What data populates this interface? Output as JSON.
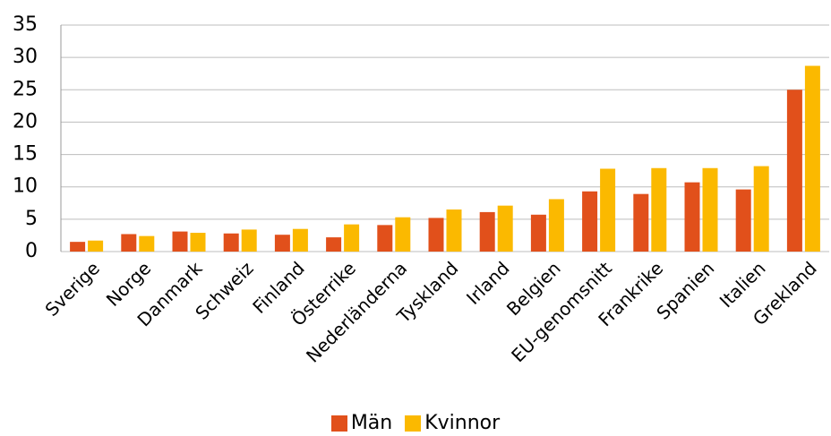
{
  "chart_data": {
    "type": "bar",
    "categories": [
      "Sverige",
      "Norge",
      "Danmark",
      "Schweiz",
      "Finland",
      "Österrike",
      "Nederländerna",
      "Tyskland",
      "Irland",
      "Belgien",
      "EU-genomsnitt",
      "Frankrike",
      "Spanien",
      "Italien",
      "Grekland"
    ],
    "series": [
      {
        "name": "Män",
        "color": "#e1501b",
        "values": [
          1.5,
          2.7,
          3.1,
          2.8,
          2.6,
          2.2,
          4.1,
          5.2,
          6.1,
          5.7,
          9.3,
          8.9,
          10.7,
          9.6,
          25.0
        ]
      },
      {
        "name": "Kvinnor",
        "color": "#fbb900",
        "values": [
          1.7,
          2.4,
          2.9,
          3.4,
          3.5,
          4.2,
          5.3,
          6.5,
          7.1,
          8.1,
          12.8,
          12.9,
          12.9,
          13.2,
          28.7
        ]
      }
    ],
    "ylim": [
      0,
      35
    ],
    "yticks": [
      0,
      5,
      10,
      15,
      20,
      25,
      30,
      35
    ],
    "grid": true
  }
}
